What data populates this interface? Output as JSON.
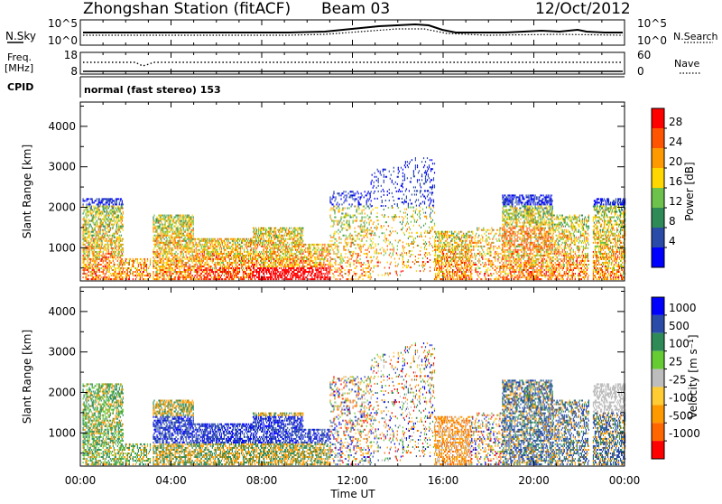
{
  "header": {
    "station": "Zhongshan Station (fitACF)",
    "beam": "Beam 03",
    "date": "12/Oct/2012"
  },
  "summary_panel": {
    "nsky_label": "N.Sky",
    "nsky_ticks": [
      "10^5",
      "10^0"
    ],
    "nsearch_label": "N.Search",
    "nsearch_ticks": [
      "10^5",
      "10^0"
    ],
    "freq_label_1": "Freq.",
    "freq_label_2": "[MHz]",
    "freq_ticks": [
      "18",
      "8"
    ],
    "nave_label": "Nave",
    "nave_ticks": [
      "60",
      "0"
    ],
    "cpid_label": "CPID",
    "cpid_value": "normal (fast stereo) 153"
  },
  "time_axis": {
    "ticks": [
      "00:00",
      "04:00",
      "08:00",
      "12:00",
      "16:00",
      "20:00",
      "00:00"
    ],
    "label": "Time UT"
  },
  "colors": {
    "power": [
      "#0000ff",
      "#2a4ba8",
      "#2e8b57",
      "#6cc24a",
      "#ffd700",
      "#ff9900",
      "#ff5500",
      "#ff0000"
    ],
    "velocity": [
      "#ff0000",
      "#ff6600",
      "#ff9900",
      "#ffcc33",
      "#bdbdbd",
      "#66cc33",
      "#2e8b57",
      "#2a4ba8",
      "#0000ff"
    ]
  },
  "chart_data": [
    {
      "type": "heatmap",
      "name": "power",
      "ylabel": "Slant Range [km]",
      "yticks": [
        "4000",
        "3000",
        "2000",
        "1000"
      ],
      "ylim": [
        180,
        4600
      ],
      "xlim_hours": [
        0,
        24
      ],
      "colorbar_label": "Power [dB]",
      "colorbar_ticks": [
        "28",
        "24",
        "20",
        "16",
        "12",
        "8",
        "4"
      ],
      "clim": [
        0,
        32
      ]
    },
    {
      "type": "heatmap",
      "name": "velocity",
      "ylabel": "Slant Range [km]",
      "yticks": [
        "4000",
        "3000",
        "2000",
        "1000"
      ],
      "ylim": [
        180,
        4600
      ],
      "xlim_hours": [
        0,
        24
      ],
      "colorbar_label": "Velocity [m s⁻¹]",
      "colorbar_ticks": [
        "1000",
        "500",
        "100",
        "25",
        "-25",
        "-100",
        "-500",
        "-1000"
      ]
    }
  ]
}
